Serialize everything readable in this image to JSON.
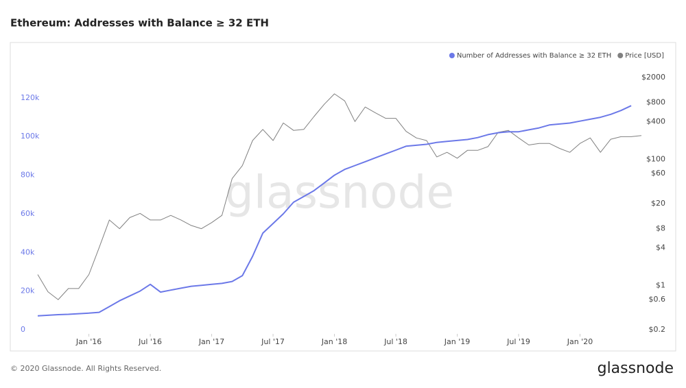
{
  "chart_data": {
    "type": "line",
    "title": "Ethereum: Addresses with Balance ≥ 32 ETH",
    "footer": "© 2020 Glassnode. All Rights Reserved.",
    "brand": "glassnode",
    "watermark": "glassnode",
    "legend": "top-right",
    "x": [
      "2015-08",
      "2015-09",
      "2015-10",
      "2015-11",
      "2015-12",
      "2016-01",
      "2016-02",
      "2016-03",
      "2016-04",
      "2016-05",
      "2016-06",
      "2016-07",
      "2016-08",
      "2016-09",
      "2016-10",
      "2016-11",
      "2016-12",
      "2017-01",
      "2017-02",
      "2017-03",
      "2017-04",
      "2017-05",
      "2017-06",
      "2017-07",
      "2017-08",
      "2017-09",
      "2017-10",
      "2017-11",
      "2017-12",
      "2018-01",
      "2018-02",
      "2018-03",
      "2018-04",
      "2018-05",
      "2018-06",
      "2018-07",
      "2018-08",
      "2018-09",
      "2018-10",
      "2018-11",
      "2018-12",
      "2019-01",
      "2019-02",
      "2019-03",
      "2019-04",
      "2019-05",
      "2019-06",
      "2019-07",
      "2019-08",
      "2019-09",
      "2019-10",
      "2019-11",
      "2019-12",
      "2020-01",
      "2020-02",
      "2020-03",
      "2020-04",
      "2020-05",
      "2020-06",
      "2020-07"
    ],
    "xlim": [
      "2015-08",
      "2020-07"
    ],
    "xticks": [
      {
        "value": "2016-01",
        "label": "Jan '16"
      },
      {
        "value": "2016-07",
        "label": "Jul '16"
      },
      {
        "value": "2017-01",
        "label": "Jan '17"
      },
      {
        "value": "2017-07",
        "label": "Jul '17"
      },
      {
        "value": "2018-01",
        "label": "Jan '18"
      },
      {
        "value": "2018-07",
        "label": "Jul '18"
      },
      {
        "value": "2019-01",
        "label": "Jan '19"
      },
      {
        "value": "2019-07",
        "label": "Jul '19"
      },
      {
        "value": "2020-01",
        "label": "Jan '20"
      }
    ],
    "ylim": [
      0,
      137000
    ],
    "yticks": [
      0,
      {
        "value": 20000,
        "label": "20k"
      },
      {
        "value": 40000,
        "label": "40k"
      },
      {
        "value": 60000,
        "label": "60k"
      },
      {
        "value": 80000,
        "label": "80k"
      },
      {
        "value": 100000,
        "label": "100k"
      },
      {
        "value": 120000,
        "label": "120k"
      }
    ],
    "y2lim": [
      0.2,
      3140
    ],
    "y2scale": "log",
    "y2ticks": [
      {
        "value": 0.2,
        "label": "$0.2"
      },
      {
        "value": 0.6,
        "label": "$0.6"
      },
      {
        "value": 1,
        "label": "$1"
      },
      {
        "value": 4,
        "label": "$4"
      },
      {
        "value": 8,
        "label": "$8"
      },
      {
        "value": 20,
        "label": "$20"
      },
      {
        "value": 60,
        "label": "$60"
      },
      {
        "value": 100,
        "label": "$100"
      },
      {
        "value": 400,
        "label": "$400"
      },
      {
        "value": 800,
        "label": "$800"
      },
      {
        "value": 2000,
        "label": "$2000"
      }
    ],
    "series": [
      {
        "name": "Number of Addresses with Balance ≥ 32 ETH",
        "color": "#6b78e8",
        "axis": "y",
        "values": [
          7200,
          7500,
          7800,
          8000,
          8300,
          8600,
          9000,
          12000,
          15000,
          17500,
          20000,
          23500,
          19500,
          20500,
          21500,
          22500,
          23000,
          23500,
          24000,
          25000,
          28000,
          38000,
          50000,
          55000,
          60000,
          66000,
          69000,
          72000,
          76000,
          80000,
          83000,
          85000,
          87000,
          89000,
          91000,
          93000,
          95000,
          95500,
          96000,
          97000,
          97500,
          98000,
          98500,
          99500,
          101000,
          102000,
          102500,
          102500,
          103500,
          104500,
          106000,
          106500,
          107000,
          108000,
          109000,
          110000,
          111500,
          113500,
          116000,
          null
        ]
      },
      {
        "name": "Price [USD]",
        "color": "#808080",
        "axis": "y2",
        "values": [
          1.5,
          0.8,
          0.6,
          0.9,
          0.9,
          1.5,
          4,
          11,
          8,
          12,
          14,
          11,
          11,
          13,
          11,
          9,
          8,
          10,
          13,
          50,
          80,
          200,
          300,
          200,
          380,
          290,
          300,
          480,
          750,
          1100,
          850,
          400,
          680,
          550,
          450,
          450,
          280,
          220,
          200,
          110,
          130,
          105,
          140,
          140,
          160,
          270,
          290,
          220,
          170,
          180,
          180,
          150,
          130,
          180,
          220,
          130,
          210,
          230,
          230,
          240
        ]
      }
    ]
  }
}
